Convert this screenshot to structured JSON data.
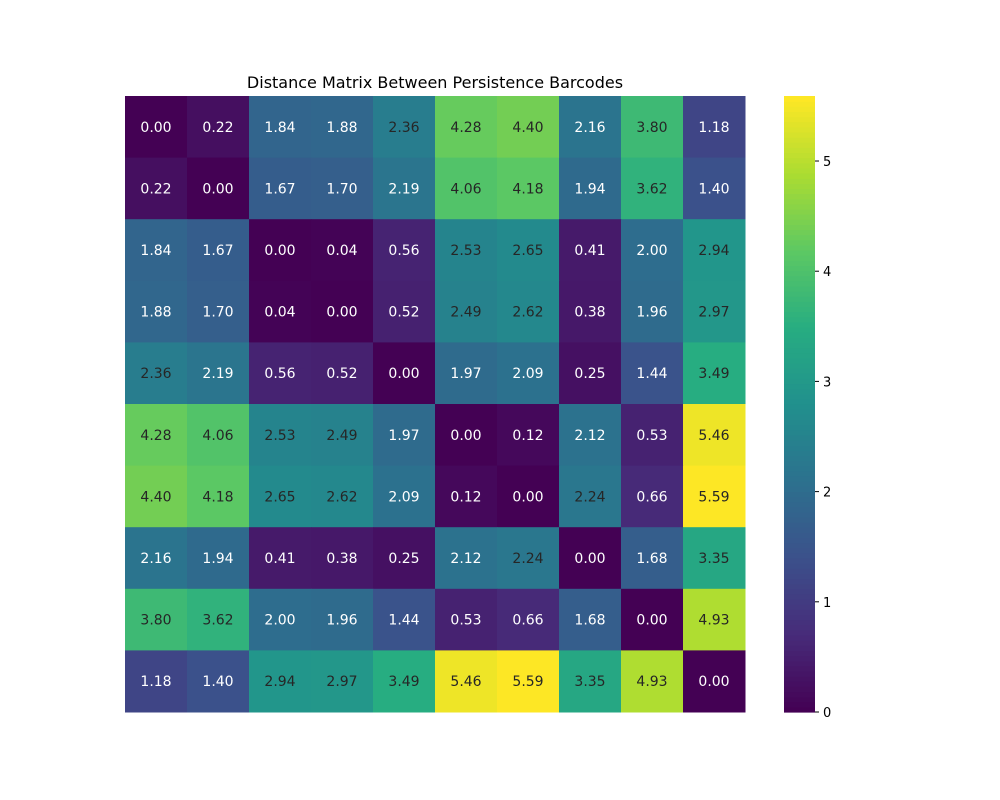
{
  "chart_data": {
    "type": "heatmap",
    "title": "Distance Matrix Between Persistence Barcodes",
    "xlabel": "",
    "ylabel": "",
    "colormap": "viridis",
    "value_format": "0.00",
    "grid": false,
    "legend": "colorbar-right",
    "colorbar": {
      "range": [
        0,
        5.59
      ],
      "ticks": [
        0,
        1,
        2,
        3,
        4,
        5
      ]
    },
    "matrix": [
      [
        0.0,
        0.22,
        1.84,
        1.88,
        2.36,
        4.28,
        4.4,
        2.16,
        3.8,
        1.18
      ],
      [
        0.22,
        0.0,
        1.67,
        1.7,
        2.19,
        4.06,
        4.18,
        1.94,
        3.62,
        1.4
      ],
      [
        1.84,
        1.67,
        0.0,
        0.04,
        0.56,
        2.53,
        2.65,
        0.41,
        2.0,
        2.94
      ],
      [
        1.88,
        1.7,
        0.04,
        0.0,
        0.52,
        2.49,
        2.62,
        0.38,
        1.96,
        2.97
      ],
      [
        2.36,
        2.19,
        0.56,
        0.52,
        0.0,
        1.97,
        2.09,
        0.25,
        1.44,
        3.49
      ],
      [
        4.28,
        4.06,
        2.53,
        2.49,
        1.97,
        0.0,
        0.12,
        2.12,
        0.53,
        5.46
      ],
      [
        4.4,
        4.18,
        2.65,
        2.62,
        2.09,
        0.12,
        0.0,
        2.24,
        0.66,
        5.59
      ],
      [
        2.16,
        1.94,
        0.41,
        0.38,
        0.25,
        2.12,
        2.24,
        0.0,
        1.68,
        3.35
      ],
      [
        3.8,
        3.62,
        2.0,
        1.96,
        1.44,
        0.53,
        0.66,
        1.68,
        0.0,
        4.93
      ],
      [
        1.18,
        1.4,
        2.94,
        2.97,
        3.49,
        5.46,
        5.59,
        3.35,
        4.93,
        0.0
      ]
    ]
  }
}
